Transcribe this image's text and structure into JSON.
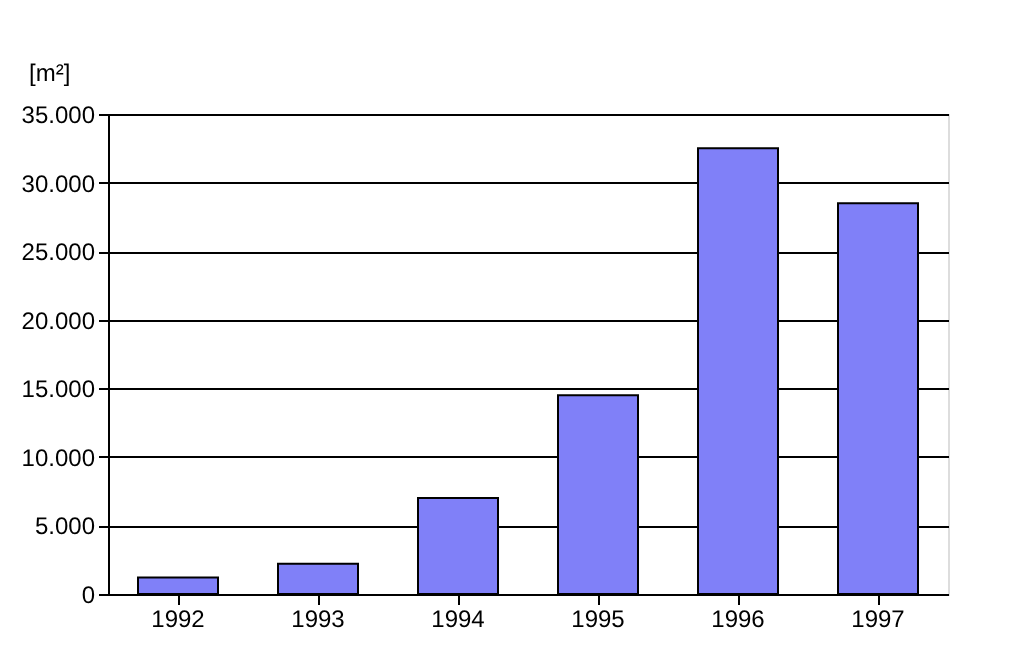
{
  "chart_data": {
    "type": "bar",
    "ylabel": "[m²]",
    "categories": [
      "1992",
      "1993",
      "1994",
      "1995",
      "1996",
      "1997"
    ],
    "values": [
      1200,
      2200,
      7000,
      14500,
      32500,
      28500
    ],
    "color": "#8080f8",
    "ylim": [
      0,
      35000
    ],
    "yticks": [
      {
        "value": 0,
        "label": "0"
      },
      {
        "value": 5000,
        "label": "5.000"
      },
      {
        "value": 10000,
        "label": "10.000"
      },
      {
        "value": 15000,
        "label": "15.000"
      },
      {
        "value": 20000,
        "label": "20.000"
      },
      {
        "value": 25000,
        "label": "25.000"
      },
      {
        "value": 30000,
        "label": "30.000"
      },
      {
        "value": 35000,
        "label": "35.000"
      }
    ],
    "grid": "y"
  }
}
